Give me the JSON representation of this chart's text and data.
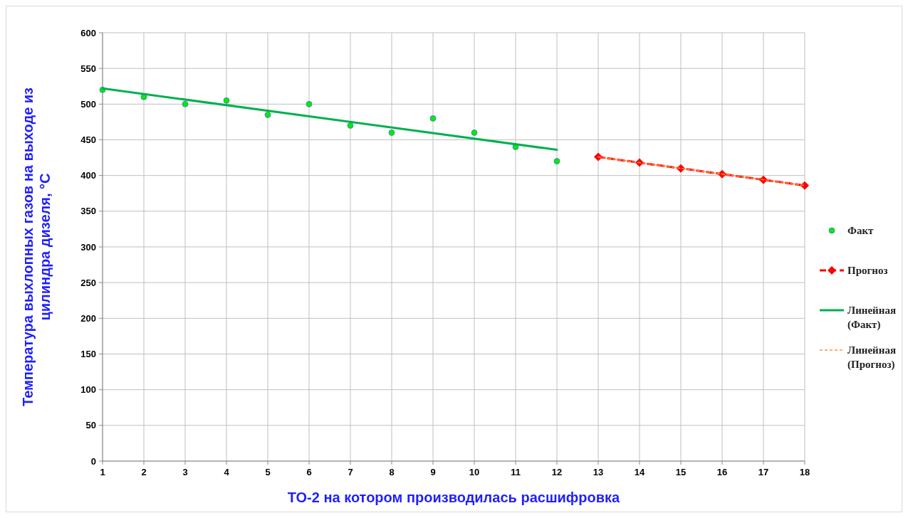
{
  "chart_data": {
    "type": "line",
    "xlabel": "ТО-2 на котором производилась расшифровка",
    "ylabel": "Температура выхлопных газов на выходе из цилиндра дизеля, °C",
    "xlim": [
      1,
      18
    ],
    "xticks": [
      1,
      2,
      3,
      4,
      5,
      6,
      7,
      8,
      9,
      10,
      11,
      12,
      13,
      14,
      15,
      16,
      17,
      18
    ],
    "ylim": [
      0,
      600
    ],
    "yticks": [
      0,
      50,
      100,
      150,
      200,
      250,
      300,
      350,
      400,
      450,
      500,
      550,
      600
    ],
    "grid": true,
    "legend": "right",
    "series": [
      {
        "name": "Факт",
        "type": "scatter",
        "color": "#00ee00",
        "marker": "circle",
        "x": [
          1,
          2,
          3,
          4,
          5,
          6,
          7,
          8,
          9,
          10,
          11,
          12
        ],
        "values": [
          520,
          510,
          500,
          505,
          485,
          500,
          470,
          460,
          480,
          460,
          440,
          420
        ]
      },
      {
        "name": "Прогноз",
        "type": "line",
        "color": "#ff0000",
        "marker": "diamond",
        "line_style": "dashed",
        "x": [
          13,
          14,
          15,
          16,
          17,
          18
        ],
        "values": [
          426,
          418,
          410,
          402,
          394,
          386
        ]
      },
      {
        "name": "Линейная (Факт)",
        "color": "#00b050",
        "marker": "none",
        "line_style": "solid",
        "x": [
          1,
          12
        ],
        "values": [
          522,
          436
        ]
      },
      {
        "name": "Линейная (Прогноз)",
        "color": "#f79646",
        "marker": "none",
        "line_style": "dashed",
        "x": [
          13,
          18
        ],
        "values": [
          426,
          386
        ]
      }
    ]
  }
}
